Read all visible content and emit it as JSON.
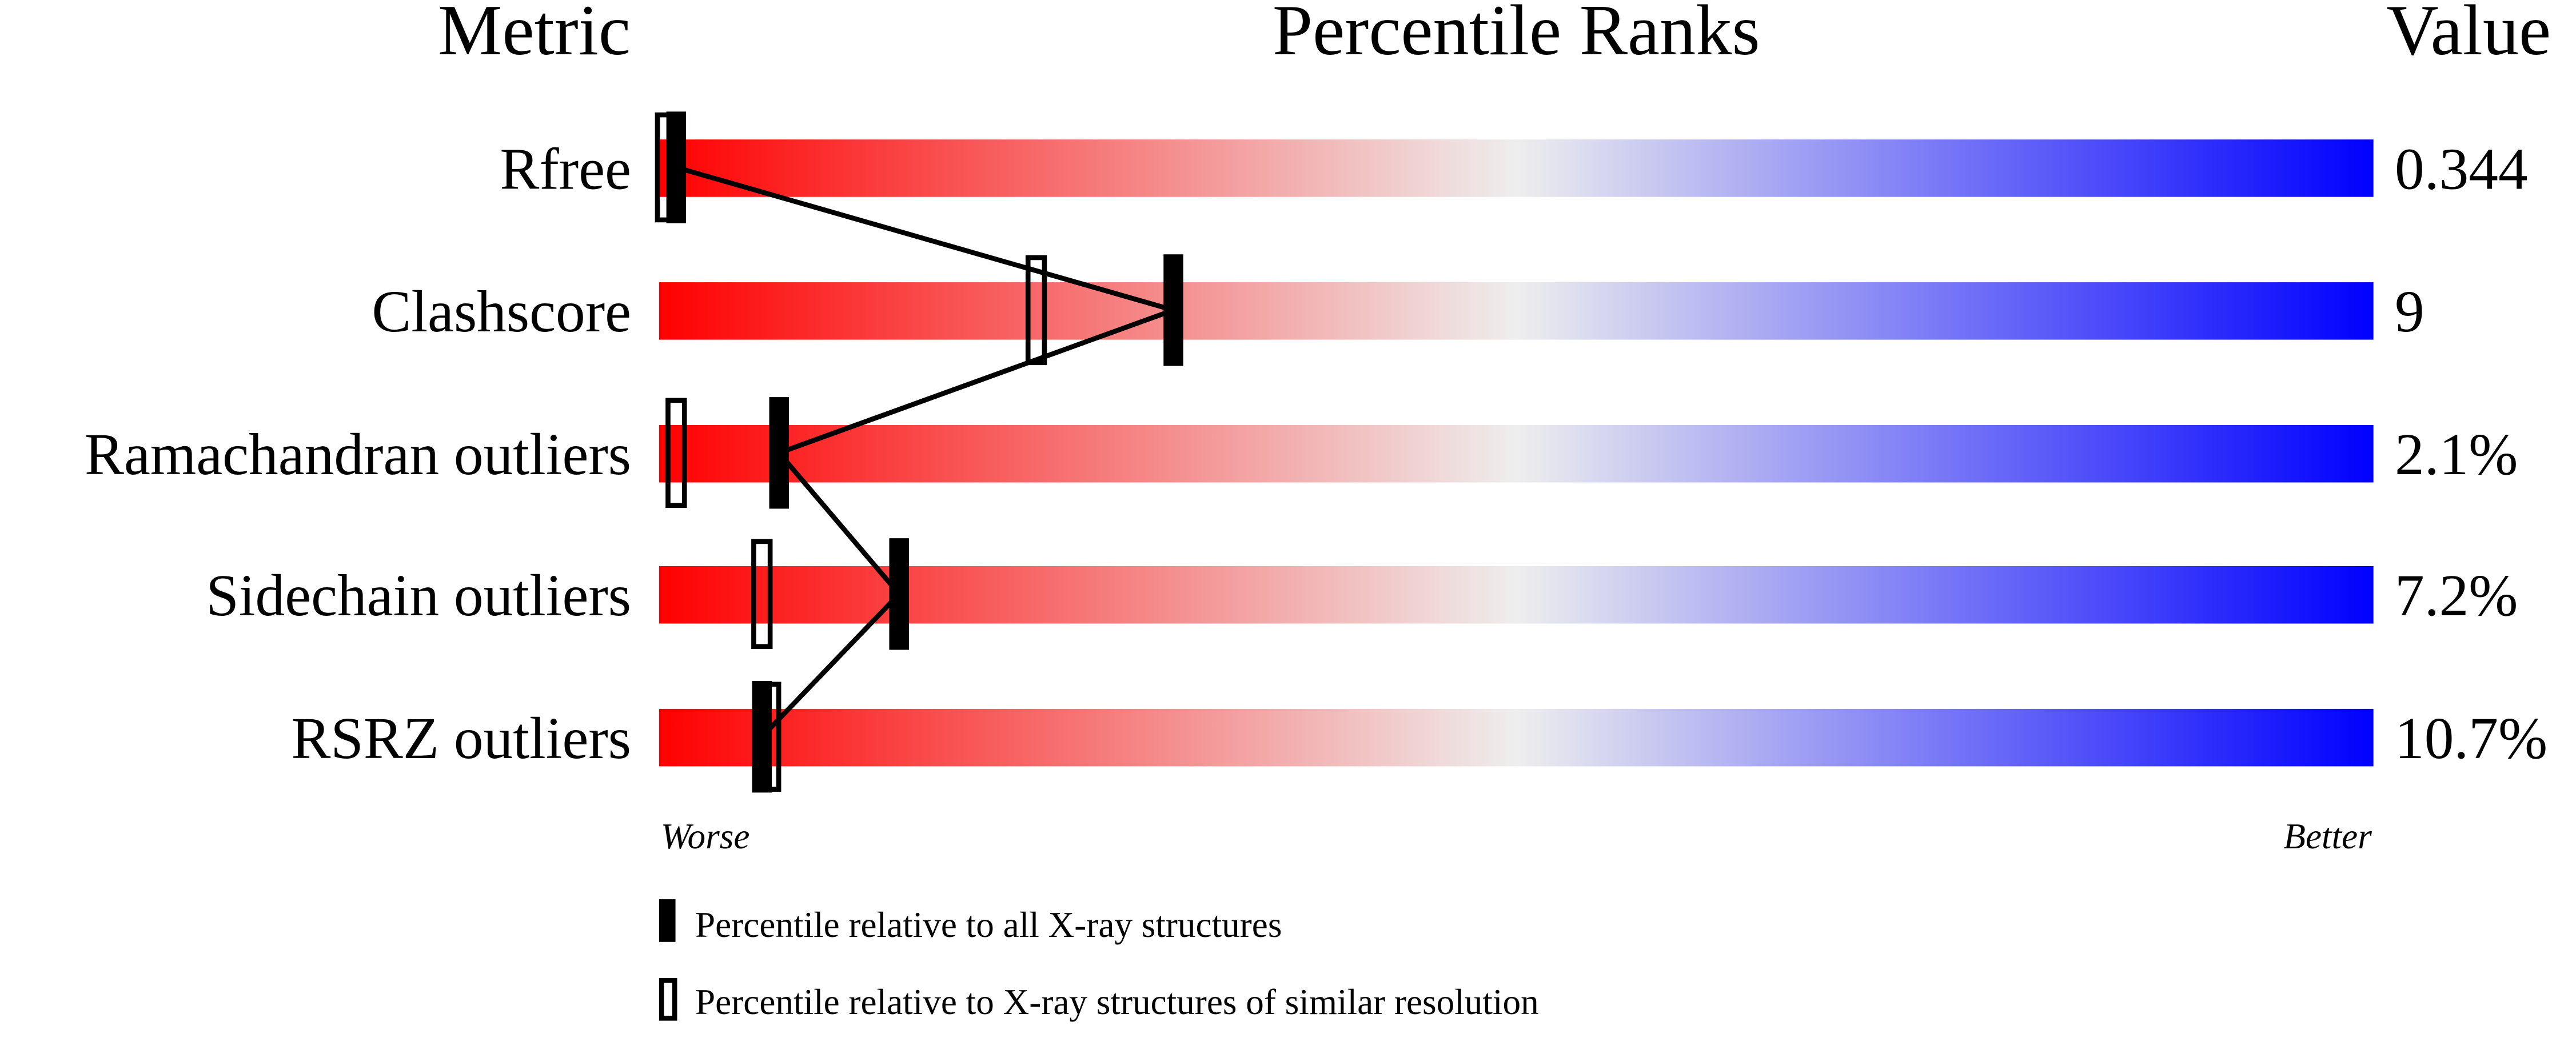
{
  "chart_data": {
    "type": "percentile-ranks",
    "headers": {
      "metric": "Metric",
      "ranks": "Percentile Ranks",
      "value": "Value"
    },
    "xlim": [
      0,
      100
    ],
    "axis_ends": {
      "left": "Worse",
      "right": "Better"
    },
    "gradient_colors": [
      "#ff0000",
      "#eeeeee",
      "#0000ff"
    ],
    "metrics": [
      {
        "name": "Rfree",
        "value": "0.344",
        "percentile_all": 1,
        "percentile_similar": 0
      },
      {
        "name": "Clashscore",
        "value": "9",
        "percentile_all": 30,
        "percentile_similar": 22
      },
      {
        "name": "Ramachandran outliers",
        "value": "2.1%",
        "percentile_all": 7,
        "percentile_similar": 1
      },
      {
        "name": "Sidechain outliers",
        "value": "7.2%",
        "percentile_all": 14,
        "percentile_similar": 6
      },
      {
        "name": "RSRZ outliers",
        "value": "10.7%",
        "percentile_all": 6,
        "percentile_similar": 6.5
      }
    ],
    "legend": [
      {
        "marker": "filled",
        "label": "Percentile relative to all X-ray structures"
      },
      {
        "marker": "open",
        "label": "Percentile relative to X-ray structures of similar resolution"
      }
    ]
  }
}
